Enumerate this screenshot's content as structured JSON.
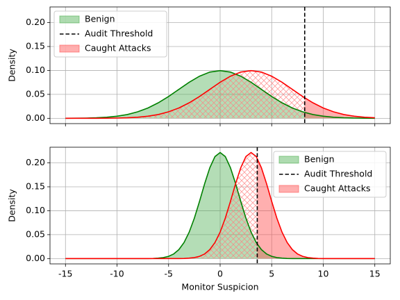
{
  "chart_data": [
    {
      "type": "line",
      "ylabel": "Density",
      "legend": "upper left",
      "grid": true,
      "xlim": [
        -16.5,
        16.5
      ],
      "ylim": [
        -0.0111,
        0.2327
      ],
      "xticks": [
        -15,
        -10,
        -5,
        0,
        5,
        10,
        15
      ],
      "xtick_labels": false,
      "yticks": [
        {
          "value": 0,
          "label": "0.00"
        },
        {
          "value": 0.05,
          "label": "0.05"
        },
        {
          "value": 0.1,
          "label": "0.10"
        },
        {
          "value": 0.15,
          "label": "0.15"
        },
        {
          "value": 0.2,
          "label": "0.20"
        }
      ],
      "x": [
        -15,
        -14,
        -13,
        -12,
        -11,
        -10,
        -9,
        -8,
        -7,
        -6,
        -5,
        -4,
        -3,
        -2,
        -1,
        0,
        1,
        2,
        3,
        4,
        5,
        6,
        7,
        8,
        9,
        10,
        11,
        12,
        13,
        14,
        15
      ],
      "series": [
        {
          "name": "Benign",
          "color": "#008000",
          "fill": "#4caf50",
          "values": [
            0.0001,
            0.0002,
            0.0005,
            0.0011,
            0.0023,
            0.0044,
            0.0079,
            0.0135,
            0.0216,
            0.0324,
            0.0456,
            0.0605,
            0.0753,
            0.088,
            0.0966,
            0.0997,
            0.0966,
            0.088,
            0.0753,
            0.0605,
            0.0456,
            0.0324,
            0.0216,
            0.0135,
            0.0079,
            0.0044,
            0.0023,
            0.0011,
            0.0005,
            0.0002,
            0.0001
          ]
        },
        {
          "name": "Caught Attacks",
          "color": "#ff0000",
          "fill": "#ff4d4d",
          "values": [
            0,
            0,
            0,
            0.0001,
            0.0002,
            0.0005,
            0.0011,
            0.0023,
            0.0044,
            0.0079,
            0.0135,
            0.0216,
            0.0324,
            0.0456,
            0.0605,
            0.0753,
            0.088,
            0.0966,
            0.0997,
            0.0966,
            0.088,
            0.0753,
            0.0605,
            0.0456,
            0.0324,
            0.0216,
            0.0135,
            0.0079,
            0.0044,
            0.0023,
            0.0011
          ]
        }
      ],
      "threshold": {
        "name": "Audit Threshold",
        "value": 8.2,
        "color": "#000000"
      }
    },
    {
      "type": "line",
      "ylabel": "Density",
      "xlabel": "Monitor Suspicion",
      "legend": "upper right",
      "grid": true,
      "xlim": [
        -16.5,
        16.5
      ],
      "ylim": [
        -0.0111,
        0.2327
      ],
      "xticks": [
        -15,
        -10,
        -5,
        0,
        5,
        10,
        15
      ],
      "xtick_labels": true,
      "yticks": [
        {
          "value": 0,
          "label": "0.00"
        },
        {
          "value": 0.05,
          "label": "0.05"
        },
        {
          "value": 0.1,
          "label": "0.10"
        },
        {
          "value": 0.15,
          "label": "0.15"
        },
        {
          "value": 0.2,
          "label": "0.20"
        }
      ],
      "x": [
        -15,
        -10,
        -7,
        -6.5,
        -6,
        -5.5,
        -5,
        -4.5,
        -4,
        -3.5,
        -3,
        -2.5,
        -2,
        -1.5,
        -1,
        -0.5,
        0,
        0.5,
        1,
        1.5,
        2,
        2.5,
        3,
        3.5,
        4,
        4.5,
        5,
        5.5,
        6,
        6.5,
        7,
        7.5,
        8,
        8.5,
        9,
        9.5,
        10,
        12,
        15
      ],
      "series": [
        {
          "name": "Benign",
          "color": "#008000",
          "fill": "#4caf50",
          "values": [
            0,
            0,
            0.0001,
            0.0003,
            0.0009,
            0.0021,
            0.0047,
            0.0097,
            0.0188,
            0.0335,
            0.0553,
            0.0845,
            0.1195,
            0.1566,
            0.1899,
            0.2132,
            0.2216,
            0.2132,
            0.1899,
            0.1566,
            0.1195,
            0.0845,
            0.0553,
            0.0335,
            0.0188,
            0.0097,
            0.0047,
            0.0021,
            0.0009,
            0.0003,
            0.0001,
            0,
            0,
            0,
            0,
            0,
            0,
            0,
            0
          ]
        },
        {
          "name": "Caught Attacks",
          "color": "#ff0000",
          "fill": "#ff4d4d",
          "values": [
            0,
            0,
            0,
            0,
            0,
            0,
            0,
            0,
            0.0001,
            0.0003,
            0.0009,
            0.0021,
            0.0047,
            0.0097,
            0.0188,
            0.0335,
            0.0553,
            0.0845,
            0.1195,
            0.1566,
            0.1899,
            0.2132,
            0.2216,
            0.2132,
            0.1899,
            0.1566,
            0.1195,
            0.0845,
            0.0553,
            0.0335,
            0.0188,
            0.0097,
            0.0047,
            0.0021,
            0.0009,
            0.0003,
            0.0001,
            0,
            0
          ]
        }
      ],
      "threshold": {
        "name": "Audit Threshold",
        "value": 3.6,
        "color": "#000000"
      }
    }
  ]
}
